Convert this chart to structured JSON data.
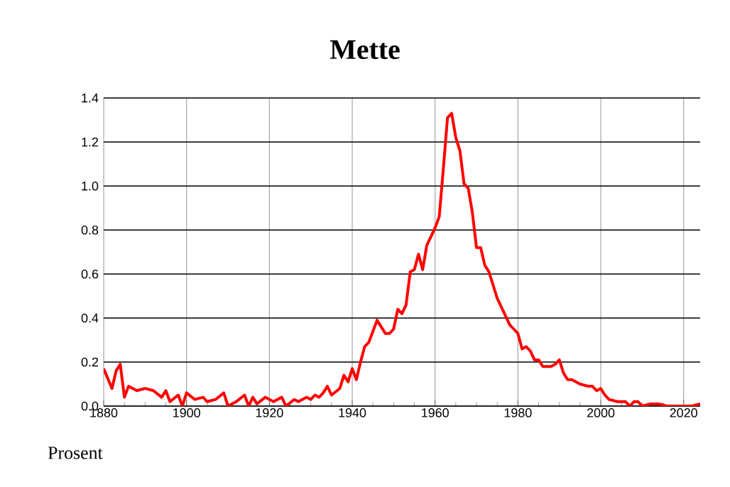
{
  "chart_data": {
    "type": "line",
    "title": "Mette",
    "ylabel": "Prosent",
    "color": "#ff0000",
    "grid": true,
    "marker": "none",
    "line_style": "solid",
    "x": [
      1880,
      1882,
      1883,
      1884,
      1885,
      1886,
      1888,
      1890,
      1892,
      1894,
      1895,
      1896,
      1898,
      1899,
      1900,
      1902,
      1904,
      1905,
      1907,
      1909,
      1910,
      1912,
      1914,
      1915,
      1916,
      1917,
      1919,
      1921,
      1923,
      1924,
      1926,
      1927,
      1929,
      1930,
      1931,
      1932,
      1933,
      1934,
      1935,
      1937,
      1938,
      1939,
      1940,
      1941,
      1942,
      1943,
      1944,
      1946,
      1947,
      1948,
      1949,
      1950,
      1951,
      1952,
      1953,
      1954,
      1955,
      1956,
      1957,
      1958,
      1959,
      1960,
      1961,
      1962,
      1963,
      1964,
      1965,
      1966,
      1967,
      1968,
      1969,
      1970,
      1971,
      1972,
      1973,
      1974,
      1975,
      1976,
      1977,
      1978,
      1979,
      1980,
      1981,
      1982,
      1983,
      1984,
      1985,
      1986,
      1988,
      1989,
      1990,
      1991,
      1992,
      1993,
      1995,
      1997,
      1998,
      1999,
      2000,
      2001,
      2002,
      2004,
      2006,
      2007,
      2008,
      2009,
      2010,
      2012,
      2014,
      2016,
      2018,
      2020,
      2022,
      2024
    ],
    "values": [
      0.17,
      0.08,
      0.16,
      0.19,
      0.04,
      0.09,
      0.07,
      0.08,
      0.07,
      0.04,
      0.07,
      0.02,
      0.05,
      0.0,
      0.06,
      0.03,
      0.04,
      0.02,
      0.03,
      0.06,
      0.0,
      0.02,
      0.05,
      0.0,
      0.04,
      0.01,
      0.04,
      0.02,
      0.04,
      0.0,
      0.03,
      0.02,
      0.04,
      0.03,
      0.05,
      0.04,
      0.06,
      0.09,
      0.05,
      0.08,
      0.14,
      0.11,
      0.17,
      0.12,
      0.2,
      0.27,
      0.29,
      0.39,
      0.36,
      0.33,
      0.33,
      0.35,
      0.44,
      0.42,
      0.46,
      0.61,
      0.62,
      0.69,
      0.62,
      0.73,
      0.77,
      0.81,
      0.86,
      1.08,
      1.31,
      1.33,
      1.22,
      1.16,
      1.01,
      0.99,
      0.88,
      0.72,
      0.72,
      0.64,
      0.61,
      0.55,
      0.49,
      0.45,
      0.41,
      0.37,
      0.35,
      0.33,
      0.26,
      0.27,
      0.25,
      0.21,
      0.21,
      0.18,
      0.18,
      0.19,
      0.21,
      0.15,
      0.12,
      0.12,
      0.1,
      0.09,
      0.09,
      0.07,
      0.08,
      0.05,
      0.03,
      0.02,
      0.02,
      0.0,
      0.02,
      0.02,
      0.0,
      0.01,
      0.01,
      0.0,
      0.0,
      0.0,
      0.0,
      0.01
    ],
    "xlim": [
      1880,
      2024
    ],
    "xticks": [
      1880,
      1900,
      1920,
      1940,
      1960,
      1980,
      2000,
      2020
    ],
    "ylim": [
      0,
      1.4
    ],
    "yticks": [
      {
        "value": 0,
        "label": "0.0"
      },
      {
        "value": 0.2,
        "label": "0.2"
      },
      {
        "value": 0.4,
        "label": "0.4"
      },
      {
        "value": 0.6,
        "label": "0.6"
      },
      {
        "value": 0.8,
        "label": "0.8"
      },
      {
        "value": 1.0,
        "label": "1.0"
      },
      {
        "value": 1.2,
        "label": "1.2"
      },
      {
        "value": 1.4,
        "label": "1.4"
      }
    ]
  }
}
